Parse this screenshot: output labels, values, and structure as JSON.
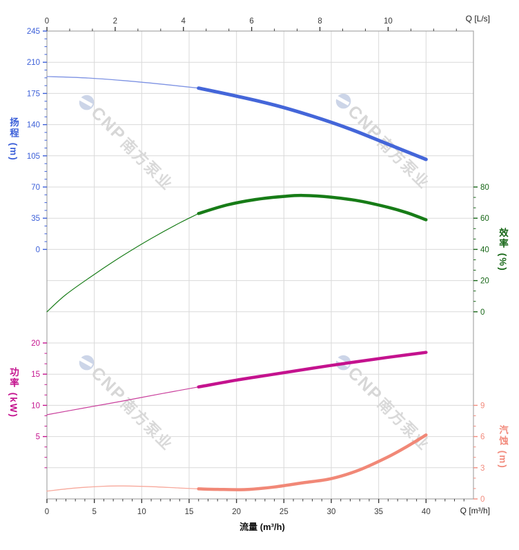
{
  "watermark": {
    "brand": "CNP",
    "company": "南方泵业"
  },
  "chart_data": {
    "type": "line",
    "title": "",
    "description": "Pump performance curves: head, efficiency, power and NPSH versus flow",
    "grid": {
      "visible": true,
      "rows": 15,
      "col_step_m3h": 5,
      "color": "#d9d9d9",
      "frame_color": "#a7a7a7"
    },
    "x_axis_bottom": {
      "label": "流量 (m³/h)",
      "unit_label": "Q [m³/h]",
      "min": 0,
      "max": 45,
      "major_ticks": [
        0,
        5,
        10,
        15,
        20,
        25,
        30,
        35,
        40
      ],
      "minor_step": 1,
      "minor_max": 44,
      "tick_color": "#3a3a3a",
      "text_color": "#3a3a3a"
    },
    "x_axis_top": {
      "unit_label": "Q [L/s]",
      "min": 0,
      "max": 12.5,
      "major_ticks": [
        0,
        2,
        4,
        6,
        8,
        10
      ],
      "minor_per_major": 2,
      "minor_max": 12,
      "m3h_per_unit": 3.6,
      "tick_color": "#3a3a3a",
      "text_color": "#3a3a3a"
    },
    "y_axes": [
      {
        "id": "head",
        "title": "扬程 (m)",
        "side": "left",
        "value_top": 245,
        "value_bottom": 0,
        "row_top": 0,
        "row_bottom": 7,
        "major_ticks": [
          245,
          210,
          175,
          140,
          105,
          70,
          35,
          0
        ],
        "minor_per_major": 3,
        "minor_range": [
          0,
          245
        ],
        "text_color": "#3a5ed8"
      },
      {
        "id": "efficiency",
        "title": "效率 (%)",
        "side": "right",
        "value_top": 80,
        "value_bottom": 0,
        "row_top": 5,
        "row_bottom": 9,
        "major_ticks": [
          80,
          60,
          40,
          20,
          0
        ],
        "minor_per_major": 2,
        "minor_range": [
          0,
          80
        ],
        "text_color": "#166616"
      },
      {
        "id": "power",
        "title": "功率 (kW)",
        "side": "left",
        "value_top": 20,
        "value_bottom": 5,
        "row_top": 10,
        "row_bottom": 13,
        "major_ticks": [
          20,
          15,
          10,
          5
        ],
        "minor_per_major": 2,
        "minor_range": [
          0,
          20
        ],
        "text_color": "#c4128e"
      },
      {
        "id": "npsh",
        "title": "汽蚀 (m)",
        "side": "right",
        "value_top": 9,
        "value_bottom": 0,
        "row_top": 12,
        "row_bottom": 15,
        "major_ticks": [
          9,
          6,
          3,
          0
        ],
        "minor_per_major": 2,
        "minor_range": [
          0,
          9
        ],
        "text_color": "#f28b7d"
      }
    ],
    "series": [
      {
        "id": "head-curve",
        "name": "扬程",
        "axis": "head",
        "color": "#4466d9",
        "thin_color": "#7d92e3",
        "width": 5,
        "thin_width": 1.3,
        "duty_start": 16,
        "points": [
          [
            0,
            194
          ],
          [
            4,
            192.5
          ],
          [
            8,
            189.5
          ],
          [
            12,
            185.5
          ],
          [
            16,
            181
          ],
          [
            20,
            172
          ],
          [
            24,
            162
          ],
          [
            28,
            149.5
          ],
          [
            32,
            135
          ],
          [
            36,
            118
          ],
          [
            40,
            101
          ]
        ]
      },
      {
        "id": "efficiency-curve",
        "name": "效率",
        "axis": "efficiency",
        "color": "#177c17",
        "thin_color": "#177c17",
        "width": 4.5,
        "thin_width": 1.2,
        "duty_start": 16,
        "points": [
          [
            0,
            0
          ],
          [
            2,
            11
          ],
          [
            5,
            24
          ],
          [
            8,
            36
          ],
          [
            11,
            47
          ],
          [
            14,
            57
          ],
          [
            16,
            63
          ],
          [
            19,
            68.5
          ],
          [
            22,
            72
          ],
          [
            25,
            74
          ],
          [
            27,
            74.6
          ],
          [
            30,
            73.5
          ],
          [
            33,
            71
          ],
          [
            36,
            67
          ],
          [
            38,
            63.5
          ],
          [
            40,
            59
          ]
        ]
      },
      {
        "id": "power-curve",
        "name": "功率",
        "axis": "power",
        "color": "#c4128e",
        "thin_color": "#c93f9c",
        "width": 4.5,
        "thin_width": 1.2,
        "duty_start": 16,
        "points": [
          [
            0,
            8.5
          ],
          [
            4,
            9.6
          ],
          [
            8,
            10.7
          ],
          [
            12,
            11.85
          ],
          [
            16,
            12.95
          ],
          [
            20,
            14.05
          ],
          [
            24,
            15.0
          ],
          [
            28,
            15.95
          ],
          [
            32,
            16.85
          ],
          [
            36,
            17.7
          ],
          [
            40,
            18.5
          ]
        ]
      },
      {
        "id": "npsh-curve",
        "name": "汽蚀",
        "axis": "npsh",
        "color": "#f18877",
        "thin_color": "#f7a89b",
        "width": 4.5,
        "thin_width": 1.3,
        "duty_start": 16,
        "points": [
          [
            0,
            0.75
          ],
          [
            3,
            1.05
          ],
          [
            6,
            1.22
          ],
          [
            8,
            1.25
          ],
          [
            11,
            1.18
          ],
          [
            14,
            1.05
          ],
          [
            16,
            0.97
          ],
          [
            18,
            0.92
          ],
          [
            21,
            0.9
          ],
          [
            24,
            1.15
          ],
          [
            27,
            1.55
          ],
          [
            30,
            1.95
          ],
          [
            33,
            2.8
          ],
          [
            36,
            4.05
          ],
          [
            38,
            5.05
          ],
          [
            40,
            6.15
          ]
        ]
      }
    ],
    "legend": "none"
  }
}
